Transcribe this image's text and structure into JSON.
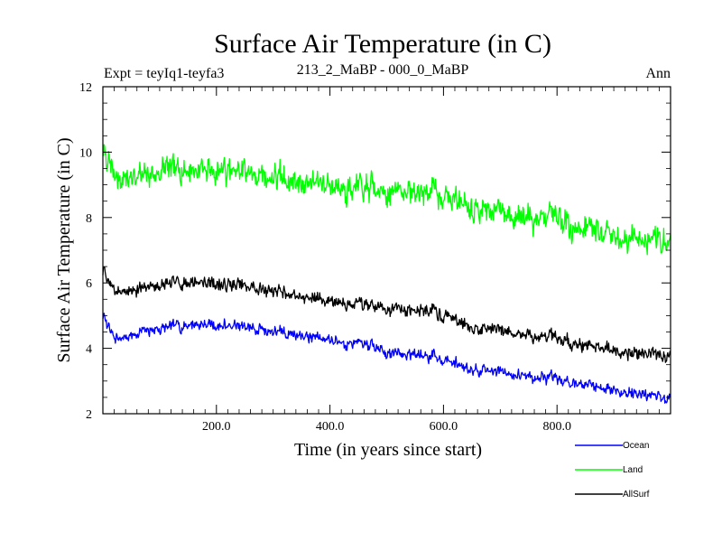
{
  "chart_data": {
    "type": "line",
    "title": "Surface Air Temperature (in C)",
    "subtitle_left": "Expt = teyIq1-teyfa3",
    "subtitle_center": "213_2_MaBP - 000_0_MaBP",
    "subtitle_right": "Ann",
    "xlabel": "Time (in years since start)",
    "ylabel": "Surface Air Temperature (in C)",
    "xlim": [
      0,
      1000
    ],
    "ylim": [
      2,
      12
    ],
    "x_ticks": [
      "200.0",
      "400.0",
      "600.0",
      "800.0"
    ],
    "x_tick_values": [
      200,
      400,
      600,
      800
    ],
    "y_ticks": [
      "2",
      "4",
      "6",
      "8",
      "10",
      "12"
    ],
    "y_tick_values": [
      2,
      4,
      6,
      8,
      10,
      12
    ],
    "legend_position": "below-right",
    "series": [
      {
        "name": "Ocean",
        "color": "#0000ff",
        "noise": 0.13,
        "trend_years": [
          0,
          20,
          100,
          160,
          250,
          350,
          450,
          500,
          580,
          650,
          750,
          850,
          950,
          1000
        ],
        "trend_values": [
          5.0,
          4.3,
          4.6,
          4.75,
          4.65,
          4.4,
          4.15,
          3.9,
          3.75,
          3.4,
          3.15,
          2.9,
          2.6,
          2.45
        ]
      },
      {
        "name": "Land",
        "color": "#00ff00",
        "noise": 0.3,
        "trend_years": [
          0,
          20,
          100,
          160,
          250,
          350,
          450,
          500,
          580,
          650,
          750,
          850,
          950,
          1000
        ],
        "trend_values": [
          10.0,
          9.2,
          9.4,
          9.5,
          9.35,
          9.1,
          8.9,
          8.8,
          8.8,
          8.4,
          8.0,
          7.7,
          7.35,
          7.3
        ]
      },
      {
        "name": "AllSurf",
        "color": "#000000",
        "noise": 0.15,
        "trend_years": [
          0,
          20,
          100,
          160,
          250,
          350,
          450,
          500,
          580,
          650,
          750,
          850,
          950,
          1000
        ],
        "trend_values": [
          6.4,
          5.7,
          5.9,
          6.05,
          5.9,
          5.6,
          5.35,
          5.2,
          5.15,
          4.7,
          4.4,
          4.1,
          3.85,
          3.75
        ]
      }
    ]
  }
}
